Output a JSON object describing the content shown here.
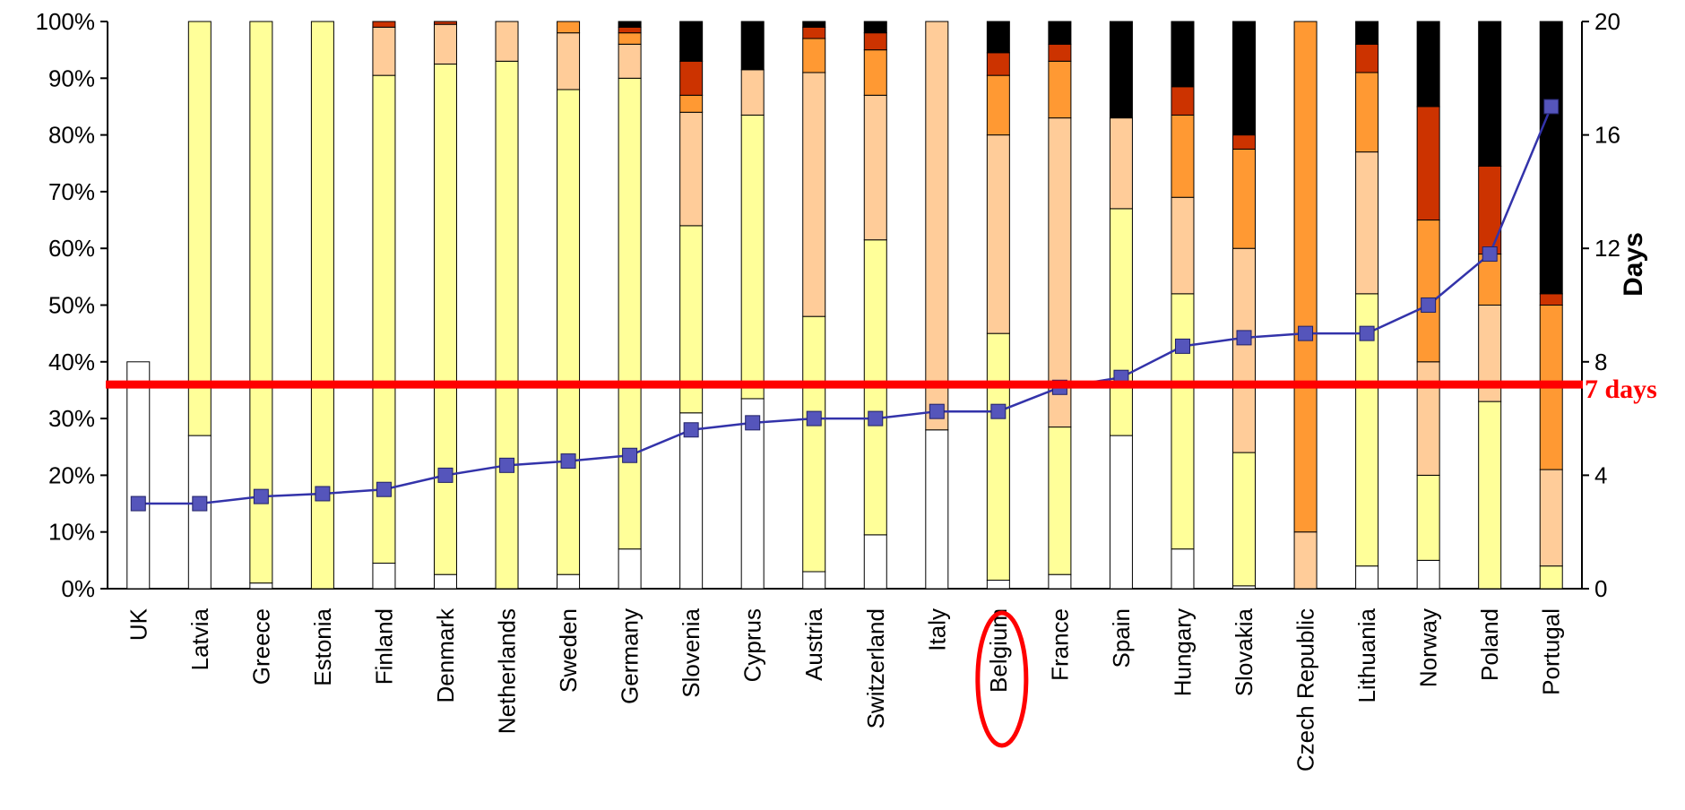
{
  "chart_data": {
    "type": "bar",
    "stacked": true,
    "categories": [
      "UK",
      "Latvia",
      "Greece",
      "Estonia",
      "Finland",
      "Denmark",
      "Netherlands",
      "Sweden",
      "Germany",
      "Slovenia",
      "Cyprus",
      "Austria",
      "Switzerland",
      "Italy",
      "Belgium",
      "France",
      "Spain",
      "Hungary",
      "Slovakia",
      "Czech Republic",
      "Lithuania",
      "Norway",
      "Poland",
      "Portugal"
    ],
    "y_left": {
      "ticks": [
        "0%",
        "10%",
        "20%",
        "30%",
        "40%",
        "50%",
        "60%",
        "70%",
        "80%",
        "90%",
        "100%"
      ],
      "range": [
        0,
        100
      ]
    },
    "y_right": {
      "label": "Days",
      "ticks": [
        "0",
        "4",
        "8",
        "12",
        "16",
        "20"
      ],
      "range": [
        0,
        20
      ]
    },
    "segment_colors": [
      "#ffffff",
      "#ffff99",
      "#ffcc99",
      "#ff9933",
      "#cc3300",
      "#000000"
    ],
    "segments": [
      [
        40,
        0,
        0,
        0,
        0,
        0
      ],
      [
        27,
        73,
        0,
        0,
        0,
        0
      ],
      [
        1,
        99,
        0,
        0,
        0,
        0
      ],
      [
        0,
        100,
        0,
        0,
        0,
        0
      ],
      [
        4.5,
        86,
        8.5,
        0,
        1,
        0
      ],
      [
        2.5,
        90,
        7,
        0,
        0.5,
        0
      ],
      [
        0,
        93,
        7,
        0,
        0,
        0
      ],
      [
        2.5,
        85.5,
        10,
        2,
        0,
        0
      ],
      [
        7,
        83,
        6,
        2,
        1,
        1
      ],
      [
        31,
        33,
        20,
        3,
        6,
        7
      ],
      [
        33.5,
        50,
        8,
        0,
        0,
        8.5
      ],
      [
        3,
        45,
        43,
        6,
        2,
        1
      ],
      [
        9.5,
        52,
        25.5,
        8,
        3,
        2
      ],
      [
        28,
        0,
        72,
        0,
        0,
        0
      ],
      [
        1.5,
        43.5,
        35,
        10.5,
        4,
        5.5
      ],
      [
        2.5,
        26,
        54.5,
        10,
        3,
        4
      ],
      [
        27,
        40,
        16,
        0,
        0,
        17
      ],
      [
        7,
        45,
        17,
        14.5,
        5,
        11.5
      ],
      [
        0.5,
        23.5,
        36,
        17.5,
        2.5,
        20
      ],
      [
        0,
        0,
        10,
        90,
        0,
        0
      ],
      [
        4,
        48,
        25,
        14,
        5,
        4
      ],
      [
        5,
        15,
        20,
        25,
        20,
        15
      ],
      [
        0,
        33,
        17,
        9,
        15.5,
        25.5
      ],
      [
        0,
        4,
        17,
        29,
        2,
        48
      ]
    ],
    "line": {
      "axis": "y_right",
      "values": [
        3.0,
        3.0,
        3.25,
        3.35,
        3.5,
        4.0,
        4.35,
        4.5,
        4.7,
        5.6,
        5.85,
        6.0,
        6.0,
        6.25,
        6.25,
        7.1,
        7.45,
        8.55,
        8.85,
        9.0,
        9.0,
        10.0,
        11.8,
        17.0
      ]
    },
    "reference_line": {
      "axis": "y_right",
      "value": 7.2,
      "label": "7 days"
    },
    "highlight_category": "Belgium"
  },
  "colors": {
    "line": "#3333aa",
    "marker": "#5555bb",
    "reference": "#ff0000",
    "highlight": "#ff0000"
  }
}
